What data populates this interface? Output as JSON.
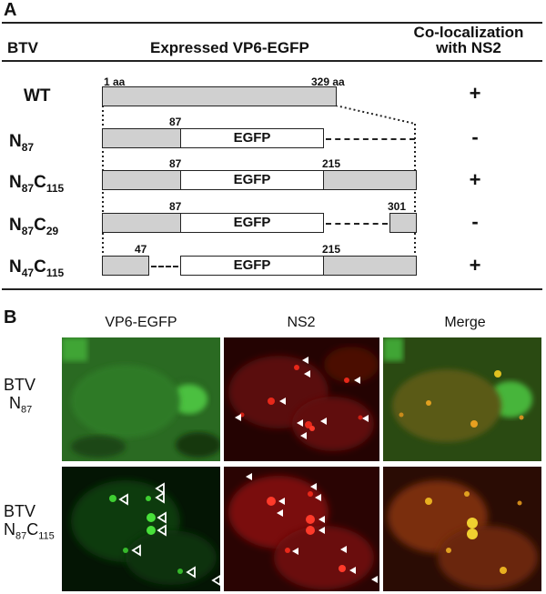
{
  "panel_a": {
    "letter": "A",
    "headers": {
      "btv": "BTV",
      "construct": "Expressed VP6-EGFP",
      "coloc_line1": "Co-localization",
      "coloc_line2": "with NS2"
    },
    "wt_start": "1 aa",
    "wt_end": "329 aa",
    "egfp_label": "EGFP",
    "rows": [
      {
        "label": "WT",
        "sub1": "",
        "mid": "",
        "sub2": "",
        "coloc": "+",
        "nums": []
      },
      {
        "label": "N",
        "sub1": "87",
        "mid": "",
        "sub2": "",
        "coloc": "-",
        "nums": [
          "87"
        ]
      },
      {
        "label": "N",
        "sub1": "87",
        "mid": "C",
        "sub2": "115",
        "coloc": "+",
        "nums": [
          "87",
          "215"
        ]
      },
      {
        "label": "N",
        "sub1": "87",
        "mid": "C",
        "sub2": "29",
        "coloc": "-",
        "nums": [
          "87",
          "301"
        ]
      },
      {
        "label": "N",
        "sub1": "47",
        "mid": "C",
        "sub2": "115",
        "coloc": "+",
        "nums": [
          "47",
          "215"
        ]
      }
    ]
  },
  "panel_b": {
    "letter": "B",
    "columns": [
      "VP6-EGFP",
      "NS2",
      "Merge"
    ],
    "rows": [
      {
        "line1": "BTV",
        "label": "N",
        "sub1": "87",
        "mid": "",
        "sub2": ""
      },
      {
        "line1": "BTV",
        "label": "N",
        "sub1": "87",
        "mid": "C",
        "sub2": "115"
      }
    ]
  },
  "colors": {
    "gray_domain": "#d0d0d0",
    "green_channel": "#2f8a26",
    "red_channel": "#c41a10",
    "merge": "#b86a1a"
  }
}
